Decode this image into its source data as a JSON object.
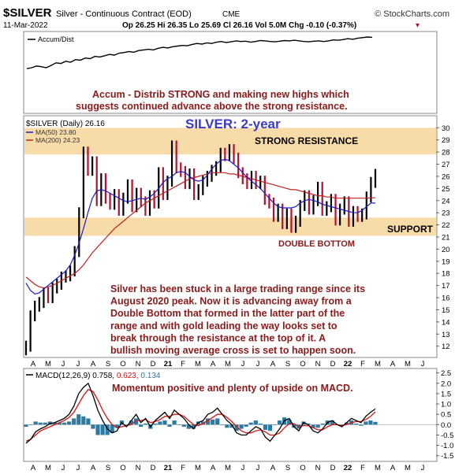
{
  "header": {
    "symbol": "$SILVER",
    "name": "Silver - Continuous Contract (EOD)",
    "exchange": "CME",
    "watermark": "© StockCharts.com",
    "date": "11-Mar-2022",
    "quote": "Op 26.25  Hi 26.35  Lo 25.69  Cl 26.16  Vol 5.0M  Chg -0.10 (-0.37%)",
    "down_arrow": "▾"
  },
  "chart_data": [
    {
      "type": "line",
      "panel": "accum-dist",
      "legend": [
        "Accum/Dist"
      ],
      "series": [
        {
          "name": "Accum/Dist",
          "values": [
            0.02,
            0.05,
            0.1,
            0.08,
            0.05,
            0.12,
            0.2,
            0.18,
            0.25,
            0.22,
            0.3,
            0.28,
            0.35,
            0.33,
            0.4,
            0.38,
            0.42,
            0.46,
            0.44,
            0.5,
            0.52,
            0.55,
            0.53,
            0.58,
            0.6,
            0.62,
            0.6,
            0.65,
            0.68,
            0.66,
            0.7,
            0.72,
            0.74,
            0.73,
            0.77,
            0.8,
            0.78,
            0.82,
            0.8,
            0.84,
            0.86,
            0.83,
            0.85,
            0.88,
            0.86,
            0.87,
            0.84,
            0.86,
            0.89,
            0.88,
            0.86,
            0.85,
            0.87,
            0.89,
            0.88,
            0.9,
            0.88,
            0.86,
            0.85,
            0.87,
            0.88,
            0.86,
            0.88,
            0.91,
            0.9,
            0.92,
            0.95,
            0.93,
            0.96,
            0.98,
            1.0,
            0.99
          ]
        }
      ],
      "annotation": "Accum - Distrib STRONG  and making new highs which suggests continued advance above the strong resistance."
    },
    {
      "type": "line",
      "panel": "price",
      "title": "SILVER: 2-year",
      "legend": [
        "$SILVER (Daily) 26.16",
        "MA(50) 23.80",
        "MA(200) 24.23"
      ],
      "x_ticks": [
        "A",
        "M",
        "J",
        "J",
        "A",
        "S",
        "O",
        "N",
        "D",
        "21",
        "F",
        "M",
        "A",
        "M",
        "J",
        "J",
        "A",
        "S",
        "O",
        "N",
        "D",
        "22",
        "F",
        "M",
        "A",
        "M",
        "J"
      ],
      "y_ticks": [
        12,
        13,
        14,
        15,
        16,
        17,
        18,
        19,
        20,
        21,
        22,
        23,
        24,
        25,
        26,
        27,
        28,
        29,
        30
      ],
      "ylim": [
        11.2,
        30.8
      ],
      "series": [
        {
          "name": "$SILVER",
          "values": [
            12.0,
            14.5,
            15.3,
            15.6,
            16.4,
            16.0,
            16.8,
            17.1,
            17.7,
            17.8,
            18.2,
            19.8,
            23.0,
            28.0,
            26.5,
            27.2,
            24.0,
            25.8,
            24.2,
            23.7,
            24.5,
            23.2,
            24.2,
            25.3,
            23.5,
            24.6,
            23.9,
            23.2,
            24.4,
            23.8,
            26.3,
            24.5,
            25.6,
            28.5,
            26.7,
            26.4,
            25.4,
            26.2,
            24.5,
            24.9,
            25.6,
            26.0,
            26.5,
            26.8,
            27.9,
            27.7,
            28.2,
            27.5,
            26.3,
            25.8,
            25.4,
            26.0,
            25.4,
            25.6,
            24.1,
            23.8,
            22.7,
            23.3,
            22.1,
            22.9,
            21.8,
            22.3,
            23.6,
            24.4,
            23.3,
            24.0,
            25.1,
            23.2,
            23.5,
            24.1,
            22.4,
            23.3,
            23.9,
            22.3,
            23.1,
            22.7,
            22.9,
            24.3,
            25.5,
            26.16
          ]
        },
        {
          "name": "MA(50)",
          "values": [
            17.2,
            16.6,
            16.3,
            16.4,
            16.7,
            17.0,
            17.3,
            17.6,
            17.9,
            18.2,
            18.7,
            19.5,
            20.5,
            21.7,
            23.0,
            24.2,
            24.8,
            24.9,
            24.8,
            24.6,
            24.4,
            24.2,
            24.0,
            23.9,
            24.0,
            24.1,
            24.2,
            24.1,
            24.3,
            24.6,
            25.0,
            25.5,
            25.8,
            26.0,
            26.3,
            26.4,
            26.3,
            26.0,
            25.7,
            25.6,
            25.7,
            26.1,
            26.6,
            27.0,
            27.3,
            27.4,
            27.3,
            27.0,
            26.7,
            26.3,
            25.9,
            25.6,
            25.3,
            25.0,
            24.6,
            24.2,
            23.8,
            23.5,
            23.4,
            23.4,
            23.4,
            23.5,
            23.8,
            24.0,
            24.1,
            24.0,
            23.9,
            23.7,
            23.6,
            23.5,
            23.4,
            23.3,
            23.2,
            23.1,
            23.0,
            23.0,
            23.2,
            23.5,
            23.8,
            23.8
          ]
        },
        {
          "name": "MA(200)",
          "values": [
            17.7,
            17.4,
            17.1,
            16.9,
            16.8,
            16.9,
            17.0,
            17.2,
            17.4,
            17.6,
            17.8,
            18.0,
            18.3,
            18.7,
            19.2,
            19.7,
            20.1,
            20.5,
            20.9,
            21.3,
            21.7,
            22.0,
            22.3,
            22.6,
            22.9,
            23.2,
            23.5,
            23.8,
            24.0,
            24.2,
            24.4,
            24.6,
            24.8,
            25.0,
            25.2,
            25.4,
            25.6,
            25.8,
            25.9,
            26.0,
            26.1,
            26.2,
            26.3,
            26.3,
            26.3,
            26.3,
            26.2,
            26.2,
            26.1,
            26.0,
            25.9,
            25.8,
            25.7,
            25.6,
            25.5,
            25.4,
            25.3,
            25.2,
            25.1,
            25.0,
            24.9,
            24.9,
            24.8,
            24.7,
            24.6,
            24.5,
            24.4,
            24.4,
            24.3,
            24.3,
            24.2,
            24.2,
            24.2,
            24.2,
            24.2,
            24.2,
            24.2,
            24.2,
            24.23,
            24.23
          ]
        }
      ],
      "zones": [
        {
          "label": "STRONG RESISTANCE",
          "from": 27.8,
          "to": 30.0
        },
        {
          "label": "SUPPORT",
          "from": 21.1,
          "to": 22.6
        }
      ],
      "annotations": {
        "double_bottom": "DOUBLE BOTTOM",
        "commentary": [
          "Silver has been stuck in a large trading range since its",
          "August 2020 peak. Now it is advancing away from a",
          "Double Bottom that formed in the latter part of the",
          "range and with gold leading the way looks set to",
          "break through the resistance at the top of it. A",
          "bullish moving average cross is set to happen soon."
        ]
      }
    },
    {
      "type": "line",
      "panel": "macd",
      "legend": [
        "MACD(12,26,9) 0.758, 0.623, 0.134"
      ],
      "x_ticks": [
        "A",
        "M",
        "J",
        "J",
        "A",
        "S",
        "O",
        "N",
        "D",
        "21",
        "F",
        "M",
        "A",
        "M",
        "J",
        "J",
        "A",
        "S",
        "O",
        "N",
        "D",
        "22",
        "F",
        "M",
        "A",
        "M",
        "J"
      ],
      "y_ticks": [
        -1.5,
        -1.0,
        -0.5,
        0.0,
        0.5,
        1.0,
        1.5,
        2.0,
        2.5
      ],
      "ylim": [
        -1.7,
        2.6
      ],
      "annotation": "Momentum positive and plenty of upside on MACD.",
      "series": [
        {
          "name": "MACD",
          "values": [
            -0.9,
            -0.7,
            -0.35,
            -0.2,
            -0.1,
            0.05,
            0.1,
            0.2,
            0.3,
            0.5,
            0.9,
            1.5,
            1.8,
            2.0,
            1.4,
            0.7,
            0.2,
            -0.2,
            -0.4,
            -0.3,
            0.1,
            -0.1,
            0.2,
            0.5,
            0.1,
            0.3,
            -0.1,
            0.2,
            0.4,
            0.6,
            0.3,
            0.7,
            0.5,
            0.3,
            0.0,
            -0.2,
            0.1,
            0.2,
            0.5,
            0.6,
            0.8,
            0.5,
            0.2,
            0.0,
            -0.4,
            -0.5,
            -0.5,
            -0.3,
            -0.1,
            -0.2,
            -0.6,
            -0.8,
            -0.5,
            -0.2,
            0.2,
            0.3,
            -0.1,
            -0.3,
            0.1,
            0.0,
            -0.3,
            -0.4,
            -0.2,
            0.1,
            0.2,
            0.0,
            -0.1,
            0.1,
            0.3,
            0.2,
            0.1,
            0.4,
            0.6,
            0.758
          ]
        },
        {
          "name": "Signal",
          "values": [
            -0.8,
            -0.7,
            -0.5,
            -0.3,
            -0.2,
            -0.1,
            0.0,
            0.1,
            0.2,
            0.35,
            0.6,
            1.0,
            1.4,
            1.7,
            1.6,
            1.2,
            0.7,
            0.3,
            0.0,
            -0.15,
            -0.1,
            -0.05,
            0.0,
            0.2,
            0.2,
            0.25,
            0.1,
            0.15,
            0.25,
            0.4,
            0.4,
            0.5,
            0.5,
            0.4,
            0.2,
            0.0,
            -0.05,
            0.05,
            0.2,
            0.35,
            0.5,
            0.5,
            0.35,
            0.15,
            -0.1,
            -0.3,
            -0.4,
            -0.4,
            -0.3,
            -0.25,
            -0.35,
            -0.5,
            -0.5,
            -0.4,
            -0.15,
            0.05,
            0.05,
            -0.1,
            -0.05,
            -0.05,
            -0.15,
            -0.25,
            -0.25,
            -0.1,
            0.0,
            0.0,
            -0.05,
            0.0,
            0.1,
            0.15,
            0.15,
            0.25,
            0.4,
            0.623
          ]
        }
      ]
    }
  ],
  "colors": {
    "price_up": "#000000",
    "price_down": "#b2102e",
    "ma50": "#1c1cc8",
    "ma200": "#c02020",
    "zone": "#f7dcaa",
    "annotation_text": "#8b1a1a",
    "title_blue": "#3a3acb",
    "macd_line": "#000000",
    "signal_line": "#dd1111",
    "histogram": "#2a7aa2"
  }
}
